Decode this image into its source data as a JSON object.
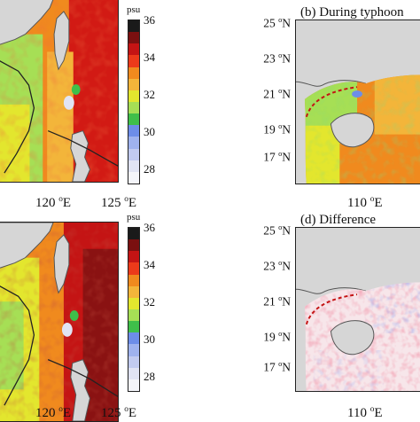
{
  "left_panels": {
    "lon_labels": [
      "120",
      "125"
    ],
    "lon_unit": "E",
    "degree_symbol": "o"
  },
  "colorbar": {
    "unit": "psu",
    "ticks": [
      "36",
      "34",
      "32",
      "30",
      "28"
    ],
    "colors": [
      "#1a1a1a",
      "#7a1010",
      "#c41414",
      "#ec3a1a",
      "#f08a1e",
      "#f3b53a",
      "#e3e62e",
      "#a6df55",
      "#3fbf4a",
      "#6d8de8",
      "#9fb2ee",
      "#c2cbf0",
      "#e1e4f4",
      "#f4f5fa"
    ]
  },
  "panel_b": {
    "title": "(b) During typhoon",
    "lat_labels": [
      "25",
      "23",
      "21",
      "19",
      "17"
    ],
    "lat_unit": "N",
    "lon_label": "110",
    "lon_unit": "E"
  },
  "panel_d": {
    "title": "(d) Difference",
    "lat_labels": [
      "25",
      "23",
      "21",
      "19",
      "17"
    ],
    "lat_unit": "N",
    "lon_label": "110",
    "lon_unit": "E"
  },
  "colors": {
    "land": "#d6d6d6",
    "land_edge": "#555555",
    "track": "#222222",
    "diff_red": "#e0405a",
    "diff_blue": "#5a6ee0"
  }
}
